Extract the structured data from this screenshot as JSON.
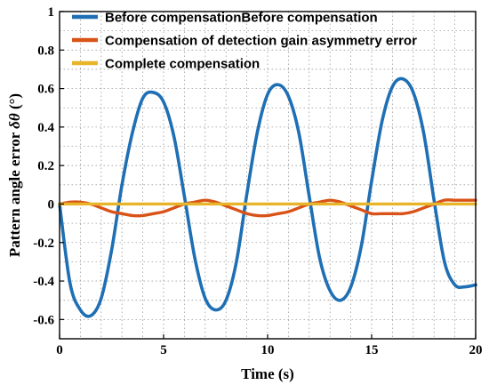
{
  "chart_data": {
    "type": "line",
    "title": "",
    "xlabel": "Time (s)",
    "ylabel": "Pattern angle error δθ (°)",
    "ylabel_parts": {
      "text": "Pattern angle error ",
      "symbol": "δθ",
      "unit": " (°)"
    },
    "xlim": [
      0,
      20
    ],
    "ylim": [
      -0.7,
      1.0
    ],
    "x_ticks": [
      0,
      5,
      10,
      15,
      20
    ],
    "y_ticks": [
      -0.6,
      -0.4,
      -0.2,
      0,
      0.2,
      0.4,
      0.6,
      0.8,
      1
    ],
    "y_tick_labels": [
      "-0.6",
      "-0.4",
      "-0.2",
      "0",
      "0.2",
      "0.4",
      "0.6",
      "0.8",
      "1"
    ],
    "grid": true,
    "legend_position": "top",
    "series": [
      {
        "name": "Before compensationBefore compensation",
        "color": "#1f6fb4",
        "x": [
          0,
          0.5,
          1.0,
          1.5,
          2.0,
          2.5,
          3.0,
          3.5,
          4.0,
          4.5,
          5.0,
          5.5,
          6.0,
          6.5,
          7.0,
          7.5,
          8.0,
          8.5,
          9.0,
          9.5,
          10.0,
          10.5,
          11.0,
          11.5,
          12.0,
          12.5,
          13.0,
          13.5,
          14.0,
          14.5,
          15.0,
          15.5,
          16.0,
          16.5,
          17.0,
          17.5,
          18.0,
          18.5,
          19.0,
          19.5,
          20.0
        ],
        "values": [
          0.0,
          -0.41,
          -0.55,
          -0.58,
          -0.49,
          -0.24,
          0.1,
          0.37,
          0.55,
          0.58,
          0.53,
          0.35,
          0.04,
          -0.28,
          -0.49,
          -0.55,
          -0.5,
          -0.3,
          0.05,
          0.37,
          0.57,
          0.62,
          0.56,
          0.37,
          0.04,
          -0.28,
          -0.45,
          -0.5,
          -0.43,
          -0.22,
          0.12,
          0.43,
          0.61,
          0.65,
          0.58,
          0.37,
          0.02,
          -0.3,
          -0.42,
          -0.43,
          -0.42
        ]
      },
      {
        "name": "Compensation of detection gain asymmetry error",
        "color": "#d95319",
        "x": [
          0,
          0.5,
          1.0,
          1.5,
          2.0,
          2.5,
          3.0,
          3.5,
          4.0,
          4.5,
          5.0,
          5.5,
          6.0,
          6.5,
          7.0,
          7.5,
          8.0,
          8.5,
          9.0,
          9.5,
          10.0,
          10.5,
          11.0,
          11.5,
          12.0,
          12.5,
          13.0,
          13.5,
          14.0,
          14.5,
          15.0,
          15.5,
          16.0,
          16.5,
          17.0,
          17.5,
          18.0,
          18.5,
          19.0,
          19.5,
          20.0
        ],
        "values": [
          0.0,
          0.01,
          0.01,
          0.0,
          -0.02,
          -0.04,
          -0.05,
          -0.06,
          -0.06,
          -0.05,
          -0.04,
          -0.02,
          0.0,
          0.01,
          0.02,
          0.01,
          -0.01,
          -0.03,
          -0.05,
          -0.06,
          -0.06,
          -0.05,
          -0.04,
          -0.02,
          0.0,
          0.01,
          0.02,
          0.01,
          -0.01,
          -0.03,
          -0.05,
          -0.05,
          -0.05,
          -0.05,
          -0.04,
          -0.02,
          0.0,
          0.02,
          0.02,
          0.02,
          0.02
        ]
      },
      {
        "name": "Complete compensation",
        "color": "#e8b52a",
        "x": [
          0,
          5,
          10,
          15,
          20
        ],
        "values": [
          0.0,
          0.0,
          0.0,
          0.0,
          0.0
        ]
      }
    ]
  }
}
